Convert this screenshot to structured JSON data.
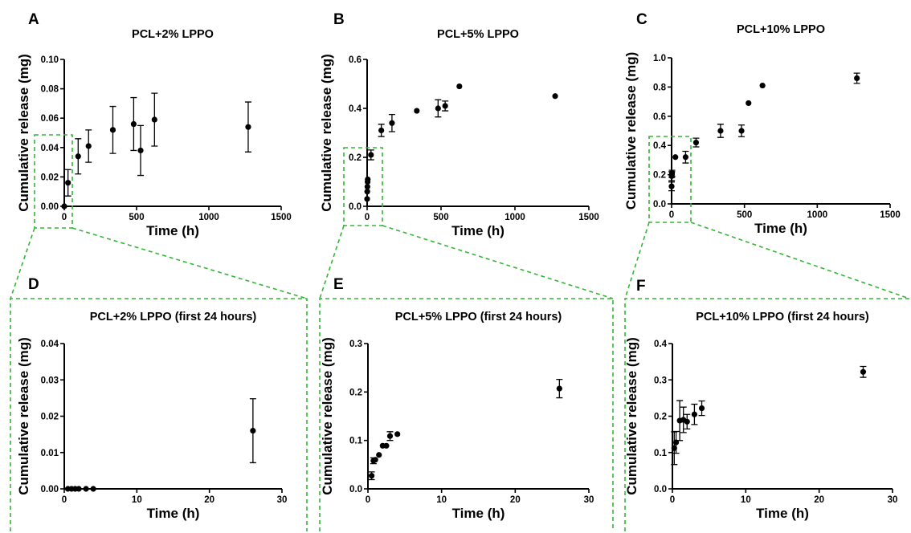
{
  "chart_data": [
    {
      "letter": "A",
      "title": "PCL+2% LPPO",
      "type": "scatter",
      "xlabel": "Time (h)",
      "ylabel": "Cumulative release (mg)",
      "xlim": [
        0,
        1500
      ],
      "ylim": [
        0,
        0.1
      ],
      "xticks": [
        0,
        500,
        1000,
        1500
      ],
      "yticks": [
        0.0,
        0.02,
        0.04,
        0.06,
        0.08,
        0.1
      ],
      "ydecimals": 2,
      "points": [
        {
          "x": 0,
          "y": 0.0,
          "err": 0
        },
        {
          "x": 26,
          "y": 0.016,
          "err": 0.009
        },
        {
          "x": 96,
          "y": 0.034,
          "err": 0.012
        },
        {
          "x": 168,
          "y": 0.041,
          "err": 0.011
        },
        {
          "x": 336,
          "y": 0.052,
          "err": 0.016
        },
        {
          "x": 480,
          "y": 0.056,
          "err": 0.018
        },
        {
          "x": 528,
          "y": 0.038,
          "err": 0.017
        },
        {
          "x": 624,
          "y": 0.059,
          "err": 0.018
        },
        {
          "x": 1272,
          "y": 0.054,
          "err": 0.017
        }
      ]
    },
    {
      "letter": "B",
      "title": "PCL+5% LPPO",
      "type": "scatter",
      "xlabel": "Time (h)",
      "ylabel": "Cumulative release (mg)",
      "xlim": [
        0,
        1500
      ],
      "ylim": [
        0,
        0.6
      ],
      "xticks": [
        0,
        500,
        1000,
        1500
      ],
      "yticks": [
        0.0,
        0.2,
        0.4,
        0.6
      ],
      "ydecimals": 1,
      "points": [
        {
          "x": 0,
          "y": 0.03,
          "err": 0
        },
        {
          "x": 1,
          "y": 0.06,
          "err": 0
        },
        {
          "x": 2,
          "y": 0.08,
          "err": 0
        },
        {
          "x": 3,
          "y": 0.1,
          "err": 0
        },
        {
          "x": 4,
          "y": 0.11,
          "err": 0
        },
        {
          "x": 26,
          "y": 0.21,
          "err": 0.02
        },
        {
          "x": 96,
          "y": 0.31,
          "err": 0.025
        },
        {
          "x": 168,
          "y": 0.34,
          "err": 0.035
        },
        {
          "x": 336,
          "y": 0.39,
          "err": 0
        },
        {
          "x": 480,
          "y": 0.4,
          "err": 0.035
        },
        {
          "x": 528,
          "y": 0.41,
          "err": 0.02
        },
        {
          "x": 624,
          "y": 0.49,
          "err": 0
        },
        {
          "x": 1272,
          "y": 0.45,
          "err": 0
        }
      ]
    },
    {
      "letter": "C",
      "title": "PCL+10% LPPO",
      "type": "scatter",
      "xlabel": "Time (h)",
      "ylabel": "Cumulative release (mg)",
      "xlim": [
        0,
        1500
      ],
      "ylim": [
        0,
        1.0
      ],
      "xticks": [
        0,
        500,
        1000,
        1500
      ],
      "yticks": [
        0.0,
        0.2,
        0.4,
        0.6,
        0.8,
        1.0
      ],
      "ydecimals": 1,
      "points": [
        {
          "x": 0,
          "y": 0.12,
          "err": 0.03
        },
        {
          "x": 1,
          "y": 0.19,
          "err": 0.03
        },
        {
          "x": 2,
          "y": 0.2,
          "err": 0.02
        },
        {
          "x": 3,
          "y": 0.21,
          "err": 0.02
        },
        {
          "x": 26,
          "y": 0.32,
          "err": 0
        },
        {
          "x": 96,
          "y": 0.32,
          "err": 0.04
        },
        {
          "x": 168,
          "y": 0.42,
          "err": 0.03
        },
        {
          "x": 336,
          "y": 0.5,
          "err": 0.045
        },
        {
          "x": 480,
          "y": 0.5,
          "err": 0.04
        },
        {
          "x": 528,
          "y": 0.69,
          "err": 0
        },
        {
          "x": 624,
          "y": 0.81,
          "err": 0
        },
        {
          "x": 1272,
          "y": 0.86,
          "err": 0.035
        }
      ]
    },
    {
      "letter": "D",
      "title": "PCL+2% LPPO (first 24 hours)",
      "type": "scatter",
      "xlabel": "Time (h)",
      "ylabel": "Cumulative release (mg)",
      "xlim": [
        0,
        30
      ],
      "ylim": [
        0,
        0.04
      ],
      "xticks": [
        0,
        10,
        20,
        30
      ],
      "yticks": [
        0.0,
        0.01,
        0.02,
        0.03,
        0.04
      ],
      "ydecimals": 2,
      "points": [
        {
          "x": 0.5,
          "y": 0.0,
          "err": 0
        },
        {
          "x": 1,
          "y": 0.0,
          "err": 0
        },
        {
          "x": 1.5,
          "y": 0.0,
          "err": 0
        },
        {
          "x": 2,
          "y": 0.0,
          "err": 0
        },
        {
          "x": 3,
          "y": 0.0,
          "err": 0
        },
        {
          "x": 4,
          "y": 0.0,
          "err": 0
        },
        {
          "x": 26,
          "y": 0.016,
          "err": 0.0088
        }
      ]
    },
    {
      "letter": "E",
      "title": "PCL+5% LPPO (first 24 hours)",
      "type": "scatter",
      "xlabel": "Time (h)",
      "ylabel": "Cumulative release (mg)",
      "xlim": [
        0,
        30
      ],
      "ylim": [
        0,
        0.3
      ],
      "xticks": [
        0,
        10,
        20,
        30
      ],
      "yticks": [
        0.0,
        0.1,
        0.2,
        0.3
      ],
      "ydecimals": 1,
      "points": [
        {
          "x": 0.5,
          "y": 0.027,
          "err": 0.008
        },
        {
          "x": 0.75,
          "y": 0.058,
          "err": 0.006
        },
        {
          "x": 1,
          "y": 0.06,
          "err": 0
        },
        {
          "x": 1.5,
          "y": 0.07,
          "err": 0
        },
        {
          "x": 2,
          "y": 0.089,
          "err": 0
        },
        {
          "x": 2.5,
          "y": 0.089,
          "err": 0
        },
        {
          "x": 3,
          "y": 0.109,
          "err": 0.009
        },
        {
          "x": 4,
          "y": 0.113,
          "err": 0
        },
        {
          "x": 26,
          "y": 0.207,
          "err": 0.019
        }
      ]
    },
    {
      "letter": "F",
      "title": "PCL+10% LPPO (first 24 hours)",
      "type": "scatter",
      "xlabel": "Time (h)",
      "ylabel": "Cumulative release (mg)",
      "xlim": [
        0,
        30
      ],
      "ylim": [
        0,
        0.4
      ],
      "xticks": [
        0,
        10,
        20,
        30
      ],
      "yticks": [
        0.0,
        0.1,
        0.2,
        0.3,
        0.4
      ],
      "ydecimals": 1,
      "points": [
        {
          "x": 0.25,
          "y": 0.112,
          "err": 0.045
        },
        {
          "x": 0.5,
          "y": 0.128,
          "err": 0.03
        },
        {
          "x": 1,
          "y": 0.188,
          "err": 0.055
        },
        {
          "x": 1.5,
          "y": 0.19,
          "err": 0.035
        },
        {
          "x": 2,
          "y": 0.185,
          "err": 0.02
        },
        {
          "x": 3,
          "y": 0.205,
          "err": 0.028
        },
        {
          "x": 4,
          "y": 0.222,
          "err": 0.02
        },
        {
          "x": 26,
          "y": 0.322,
          "err": 0.015
        }
      ]
    }
  ]
}
